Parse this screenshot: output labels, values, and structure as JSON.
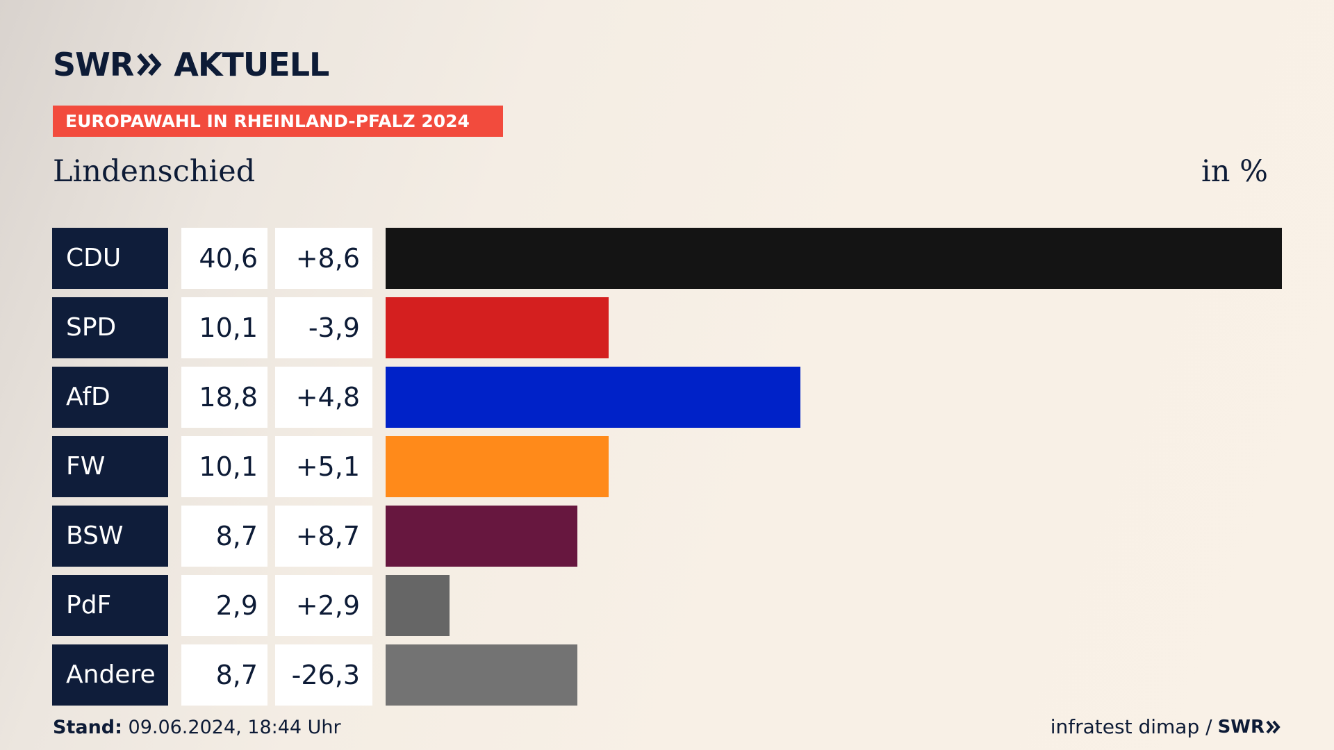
{
  "header": {
    "logo_swr": "SWR",
    "logo_name": "AKTUELL",
    "banner": "EUROPAWAHL IN RHEINLAND-PFALZ 2024",
    "subtitle": "Lindenschied",
    "unit": "in %"
  },
  "footer": {
    "stand_label": "Stand:",
    "stand_value": "09.06.2024, 18:44 Uhr",
    "source": "infratest dimap /",
    "source_logo": "SWR"
  },
  "chart_data": {
    "type": "bar",
    "orientation": "horizontal",
    "categories": [
      "CDU",
      "SPD",
      "AfD",
      "FW",
      "BSW",
      "PdF",
      "Andere"
    ],
    "values": [
      40.6,
      10.1,
      18.8,
      10.1,
      8.7,
      2.9,
      8.7
    ],
    "value_labels": [
      "40,6",
      "10,1",
      "18,8",
      "10,1",
      "8,7",
      "2,9",
      "8,7"
    ],
    "changes": [
      8.6,
      -3.9,
      4.8,
      5.1,
      8.7,
      2.9,
      -26.3
    ],
    "change_labels": [
      "+8,6",
      "-3,9",
      "+4,8",
      "+5,1",
      "+8,7",
      "+2,9",
      "-26,3"
    ],
    "colors": [
      "#141414",
      "#d41f1f",
      "#0022c8",
      "#ff8a1a",
      "#67173f",
      "#666666",
      "#737373"
    ],
    "xlim": [
      0,
      40.6
    ],
    "grid": false,
    "legend": "none"
  }
}
